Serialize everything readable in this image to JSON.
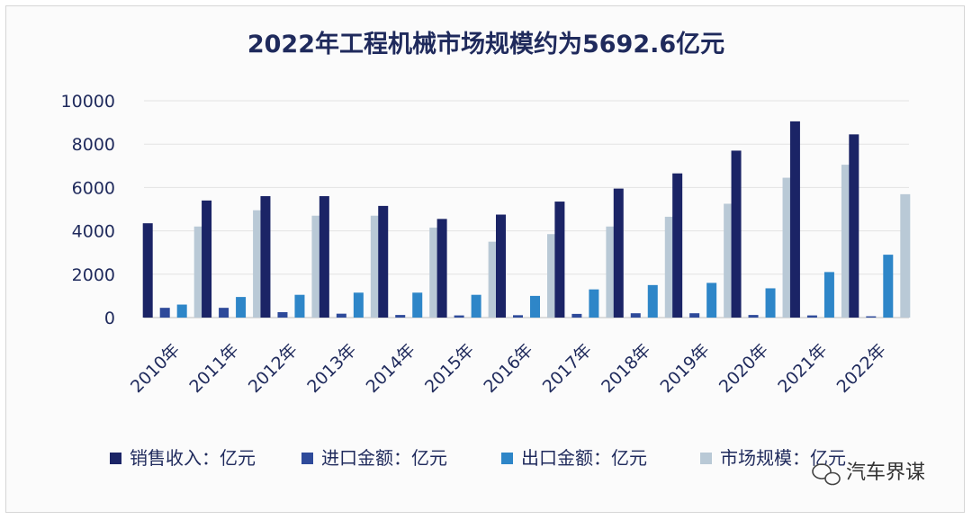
{
  "chart_data": {
    "type": "bar",
    "title": "2022年工程机械市场规模约为5692.6亿元",
    "categories": [
      "2010年",
      "2011年",
      "2012年",
      "2013年",
      "2014年",
      "2015年",
      "2016年",
      "2017年",
      "2018年",
      "2019年",
      "2020年",
      "2021年",
      "2022年"
    ],
    "series": [
      {
        "name": "销售收入：亿元",
        "color": "#1b2466",
        "values": [
          4350,
          5400,
          5600,
          5600,
          5150,
          4550,
          4750,
          5350,
          5950,
          6650,
          7700,
          9050,
          8450
        ]
      },
      {
        "name": "进口金额：亿元",
        "color": "#2e4a9a",
        "values": [
          450,
          450,
          250,
          180,
          120,
          100,
          110,
          170,
          200,
          200,
          120,
          100,
          60
        ]
      },
      {
        "name": "出口金额：亿元",
        "color": "#2e86c8",
        "values": [
          600,
          950,
          1050,
          1150,
          1150,
          1050,
          1000,
          1300,
          1500,
          1600,
          1350,
          2100,
          2900
        ]
      },
      {
        "name": "市场规模：亿元",
        "color": "#b9c9d6",
        "values": [
          4200,
          4950,
          4700,
          4700,
          4150,
          3500,
          3850,
          4200,
          4650,
          5250,
          6450,
          7050,
          5690
        ]
      }
    ],
    "ylim": [
      0,
      10000
    ],
    "yticks": [
      "0",
      "2000",
      "4000",
      "6000",
      "8000",
      "10000"
    ],
    "grid": true,
    "legend_position": "bottom"
  },
  "watermark": {
    "label": "汽车界谋",
    "icon": "wechat-icon"
  }
}
